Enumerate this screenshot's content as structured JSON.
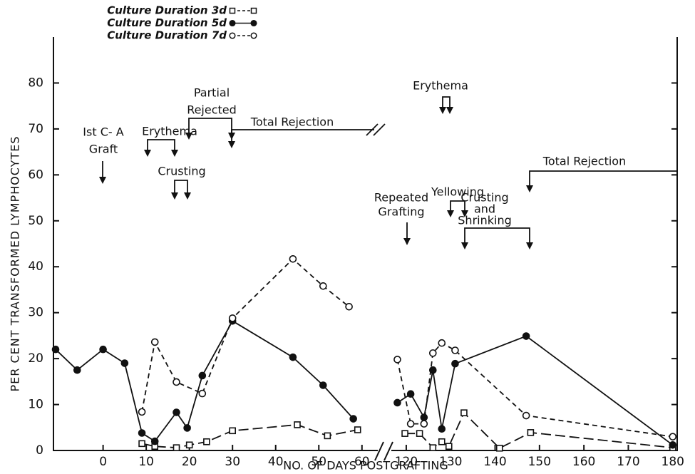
{
  "chart_data": {
    "type": "line",
    "xlabel": "NO. OF DAYS POSTGRAFTING",
    "ylabel": "PER CENT TRANSFORMED LYMPHOCYTES",
    "xlim": [
      -11.5,
      181
    ],
    "xbreak": [
      64,
      116
    ],
    "xticks": [
      0,
      10,
      20,
      30,
      40,
      50,
      60,
      120,
      130,
      140,
      150,
      160,
      170,
      180
    ],
    "ylim": [
      0,
      90
    ],
    "yticks": [
      0,
      10,
      20,
      30,
      40,
      50,
      60,
      70,
      80
    ],
    "legend": "top-left",
    "series": [
      {
        "name": "Culture Duration 3d",
        "color": "#111111",
        "marker": "square-open",
        "linestyle": "long-dash",
        "x": [
          9,
          12,
          17,
          20,
          24,
          30,
          45,
          52,
          59,
          null,
          119.7,
          123,
          126,
          128,
          129.6,
          133,
          141,
          148,
          180
        ],
        "values": [
          1.5,
          0.9,
          0.6,
          1.2,
          1.9,
          4.3,
          5.6,
          3.2,
          4.5,
          null,
          3.7,
          3.7,
          0.6,
          1.9,
          0.9,
          8.2,
          0.5,
          3.9,
          0.6
        ]
      },
      {
        "name": "Culture Duration 5d",
        "color": "#111111",
        "marker": "circle-filled",
        "linestyle": "solid",
        "x": [
          -11,
          -6,
          0,
          5,
          9,
          12,
          17,
          19.5,
          23,
          30,
          44,
          51,
          58,
          null,
          118,
          121,
          124,
          126,
          128,
          131,
          147,
          180
        ],
        "values": [
          22,
          17.5,
          22,
          19,
          3.8,
          2,
          8.3,
          4.9,
          16.3,
          28.2,
          20.3,
          14.2,
          6.9,
          null,
          10.4,
          12.3,
          7.2,
          17.5,
          4.7,
          18.9,
          24.9,
          1.2
        ]
      },
      {
        "name": "Culture Duration 7d",
        "color": "#111111",
        "marker": "circle-open",
        "linestyle": "dash",
        "x": [
          9,
          12,
          17,
          23,
          30,
          44,
          51,
          57,
          null,
          118,
          121,
          124,
          126,
          128,
          131,
          147,
          180
        ],
        "values": [
          8.4,
          23.6,
          14.9,
          12.4,
          28.8,
          41.7,
          35.8,
          31.3,
          null,
          19.8,
          5.8,
          5.8,
          21.2,
          23.4,
          21.8,
          7.6,
          3.0
        ]
      }
    ],
    "annotations": [
      "Ist C- A",
      "Graft",
      "Erythema",
      "Partial",
      "Rejected",
      "Total Rejection",
      "Crusting",
      "Erythema",
      "Yellowing",
      "Total Rejection",
      "Repeated",
      "Grafting",
      "Crusting",
      "and",
      "Shrinking"
    ]
  }
}
